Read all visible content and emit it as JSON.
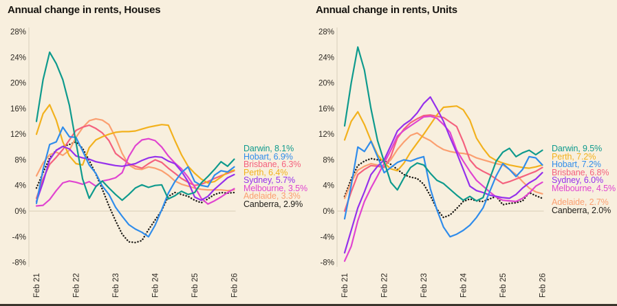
{
  "page": {
    "background": "#f8efde",
    "bottom_bar_color": "#3a352c",
    "zero_line_color": "#ddd3bf",
    "axis_line_color": "#d9cfba"
  },
  "series_colors": {
    "Darwin": "#0e9a8d",
    "Hobart": "#2f8ceb",
    "Brisbane": "#f4617e",
    "Perth": "#f2b11d",
    "Sydney": "#9530ec",
    "Melbourne": "#e044d0",
    "Adelaide": "#fb9f70",
    "Canberra": "#1d1b17"
  },
  "chart_data": [
    {
      "type": "line",
      "title": "Annual change in rents, Houses",
      "ylim": [
        -8,
        28
      ],
      "grid": "zero-line-only",
      "y_tick_values": [
        28,
        24,
        20,
        16,
        12,
        8,
        4,
        0,
        -4,
        -8
      ],
      "y_tick_labels": [
        "28%",
        "24%",
        "20%",
        "16%",
        "12%",
        "8%",
        "4%",
        "0%",
        "-4%",
        "-8%"
      ],
      "x_tick_labels": [
        "Feb 21",
        "Feb 22",
        "Feb 23",
        "Feb 24",
        "Feb 25",
        "Feb 26"
      ],
      "x_range_note": "monthly-interpolated values Feb 2021 to Feb 2026, evenly spaced",
      "series": [
        {
          "name": "Canberra",
          "color": "#1d1b17",
          "style": "dotted",
          "values": [
            3.6,
            6.0,
            8.3,
            9.5,
            10.1,
            10.4,
            10.8,
            9.8,
            7.9,
            5.8,
            3.4,
            0.8,
            -1.5,
            -3.6,
            -4.8,
            -4.9,
            -4.6,
            -2.9,
            -1.4,
            0.1,
            2.3,
            2.9,
            2.6,
            2.3,
            1.7,
            1.3,
            1.9,
            2.6,
            2.9,
            2.8,
            2.9
          ]
        },
        {
          "name": "Adelaide",
          "color": "#fb9f70",
          "style": "solid",
          "values": [
            5.5,
            7.5,
            8.8,
            9.2,
            8.7,
            9.5,
            11.5,
            13.0,
            14.1,
            14.4,
            14.2,
            13.5,
            11.5,
            9.0,
            7.2,
            6.6,
            6.5,
            6.9,
            6.7,
            6.3,
            5.6,
            4.7,
            4.2,
            3.9,
            3.6,
            3.4,
            3.3,
            3.3,
            3.3,
            3.2,
            3.3
          ]
        },
        {
          "name": "Brisbane",
          "color": "#f4617e",
          "style": "solid",
          "values": [
            2.0,
            5.0,
            7.3,
            8.4,
            9.6,
            11.1,
            12.6,
            13.1,
            13.4,
            12.9,
            12.2,
            11.0,
            9.0,
            8.2,
            7.4,
            7.0,
            6.7,
            7.4,
            8.0,
            7.6,
            6.7,
            5.9,
            5.1,
            4.5,
            4.0,
            4.2,
            4.6,
            5.1,
            5.5,
            5.9,
            6.3
          ]
        },
        {
          "name": "Perth",
          "color": "#f2b11d",
          "style": "solid",
          "values": [
            12.0,
            15.2,
            16.6,
            14.2,
            10.8,
            8.6,
            7.4,
            7.2,
            9.9,
            11.1,
            11.6,
            12.0,
            12.3,
            12.4,
            12.4,
            12.5,
            12.8,
            13.1,
            13.3,
            13.5,
            13.4,
            11.0,
            8.8,
            7.0,
            5.9,
            5.0,
            4.4,
            4.6,
            5.3,
            6.1,
            6.4
          ]
        },
        {
          "name": "Melbourne",
          "color": "#e044d0",
          "style": "solid",
          "values": [
            0.8,
            0.9,
            1.8,
            3.2,
            4.4,
            4.7,
            4.5,
            4.2,
            4.6,
            3.9,
            4.7,
            4.9,
            5.2,
            6.0,
            8.5,
            10.2,
            11.1,
            11.3,
            11.0,
            10.0,
            8.6,
            7.5,
            6.6,
            5.3,
            3.8,
            2.0,
            1.1,
            1.6,
            2.2,
            2.9,
            3.5
          ]
        },
        {
          "name": "Sydney",
          "color": "#9530ec",
          "style": "solid",
          "values": [
            1.5,
            4.5,
            8.0,
            9.5,
            10.1,
            9.7,
            8.6,
            8.3,
            8.1,
            7.7,
            7.5,
            7.3,
            7.1,
            7.0,
            7.2,
            7.4,
            7.9,
            8.3,
            8.5,
            8.4,
            7.8,
            7.4,
            6.2,
            4.6,
            2.2,
            1.7,
            2.3,
            3.4,
            4.3,
            5.2,
            5.7
          ]
        },
        {
          "name": "Hobart",
          "color": "#2f8ceb",
          "style": "solid",
          "values": [
            1.2,
            6.5,
            10.4,
            10.8,
            13.1,
            11.6,
            11.5,
            9.4,
            7.2,
            5.9,
            3.9,
            2.6,
            0.6,
            -0.8,
            -2.1,
            -2.8,
            -3.3,
            -4.0,
            -2.2,
            0.2,
            2.8,
            4.6,
            6.0,
            6.9,
            4.6,
            4.0,
            3.8,
            5.6,
            6.3,
            6.1,
            6.9
          ]
        },
        {
          "name": "Darwin",
          "color": "#0e9a8d",
          "style": "solid",
          "values": [
            14.0,
            20.5,
            24.8,
            23.0,
            20.5,
            16.5,
            10.7,
            5.0,
            2.0,
            3.8,
            4.7,
            3.6,
            2.6,
            1.7,
            2.6,
            3.6,
            4.1,
            3.7,
            4.0,
            4.1,
            1.9,
            2.4,
            3.1,
            2.6,
            2.9,
            4.4,
            5.4,
            6.5,
            7.7,
            7.0,
            8.1
          ]
        }
      ],
      "legend": [
        {
          "label": "Darwin, 8.1%",
          "color": "#0e9a8d"
        },
        {
          "label": "Hobart, 6.9%",
          "color": "#2f8ceb"
        },
        {
          "label": "Brisbane, 6.3%",
          "color": "#f4617e"
        },
        {
          "label": "Perth, 6.4%",
          "color": "#f2b11d"
        },
        {
          "label": "Sydney, 5.7%",
          "color": "#9530ec"
        },
        {
          "label": "Melbourne, 3.5%",
          "color": "#e044d0"
        },
        {
          "label": "Adelaide, 3.3%",
          "color": "#fb9f70"
        },
        {
          "label": "Canberra, 2.9%",
          "color": "#1d1b17"
        }
      ]
    },
    {
      "type": "line",
      "title": "Annual change in rents, Units",
      "ylim": [
        -8,
        28
      ],
      "grid": "zero-line-only",
      "y_tick_values": [
        28,
        24,
        20,
        16,
        12,
        8,
        4,
        0,
        -4,
        -8
      ],
      "y_tick_labels": [
        "28%",
        "24%",
        "20%",
        "16%",
        "12%",
        "8%",
        "4%",
        "0%",
        "-4%",
        "-8%"
      ],
      "x_tick_labels": [
        "Feb 21",
        "Feb 22",
        "Feb 23",
        "Feb 24",
        "Feb 25",
        "Feb 26"
      ],
      "x_range_note": "monthly-interpolated values Feb 2021 to Feb 2026, evenly spaced",
      "series": [
        {
          "name": "Canberra",
          "color": "#1d1b17",
          "style": "dotted",
          "values": [
            2.3,
            5.0,
            7.1,
            7.8,
            8.2,
            8.0,
            7.9,
            7.3,
            6.5,
            5.7,
            5.3,
            5.1,
            4.2,
            2.4,
            0.3,
            -1.0,
            -0.6,
            0.4,
            1.5,
            1.9,
            1.6,
            1.5,
            1.9,
            2.3,
            1.0,
            1.2,
            1.3,
            1.6,
            2.9,
            2.4,
            2.0
          ]
        },
        {
          "name": "Adelaide",
          "color": "#fb9f70",
          "style": "solid",
          "values": [
            2.0,
            4.5,
            6.4,
            7.0,
            7.4,
            7.2,
            7.0,
            8.0,
            9.6,
            10.8,
            11.8,
            12.2,
            11.5,
            11.0,
            10.2,
            9.6,
            9.3,
            9.1,
            9.0,
            8.8,
            8.3,
            8.0,
            7.7,
            7.4,
            7.2,
            6.5,
            5.7,
            4.6,
            3.6,
            3.0,
            2.7
          ]
        },
        {
          "name": "Brisbane",
          "color": "#f4617e",
          "style": "solid",
          "values": [
            0.0,
            3.0,
            5.7,
            6.5,
            7.1,
            7.0,
            6.8,
            8.5,
            11.4,
            12.8,
            13.8,
            14.4,
            14.9,
            15.0,
            14.8,
            14.6,
            13.9,
            13.2,
            10.8,
            8.0,
            6.8,
            6.2,
            5.7,
            5.0,
            4.3,
            4.6,
            5.0,
            5.4,
            5.8,
            6.2,
            6.8
          ]
        },
        {
          "name": "Perth",
          "color": "#f2b11d",
          "style": "solid",
          "values": [
            11.1,
            14.0,
            15.5,
            13.5,
            11.0,
            8.8,
            7.5,
            6.6,
            6.3,
            7.5,
            9.2,
            10.6,
            12.0,
            13.5,
            15.0,
            16.2,
            16.3,
            16.4,
            15.8,
            14.2,
            11.4,
            9.8,
            8.5,
            7.9,
            7.5,
            7.2,
            7.0,
            6.8,
            6.7,
            6.9,
            7.2
          ]
        },
        {
          "name": "Melbourne",
          "color": "#e044d0",
          "style": "solid",
          "values": [
            -7.8,
            -5.5,
            -1.5,
            1.5,
            3.6,
            5.5,
            7.5,
            9.5,
            11.7,
            12.6,
            13.3,
            14.0,
            14.7,
            14.8,
            14.5,
            13.5,
            12.3,
            9.5,
            7.8,
            6.2,
            4.8,
            3.9,
            3.0,
            2.2,
            1.7,
            1.6,
            1.5,
            2.0,
            2.8,
            3.9,
            4.5
          ]
        },
        {
          "name": "Sydney",
          "color": "#9530ec",
          "style": "solid",
          "values": [
            -6.5,
            -3.0,
            0.5,
            3.0,
            5.7,
            7.0,
            8.0,
            10.2,
            12.5,
            13.5,
            14.2,
            15.3,
            16.8,
            17.8,
            16.0,
            14.0,
            11.5,
            9.1,
            6.5,
            3.9,
            3.2,
            2.9,
            2.5,
            2.3,
            2.1,
            2.0,
            2.6,
            3.6,
            4.4,
            5.0,
            6.0
          ]
        },
        {
          "name": "Hobart",
          "color": "#2f8ceb",
          "style": "solid",
          "values": [
            -1.2,
            4.0,
            10.0,
            9.3,
            10.9,
            8.5,
            6.0,
            6.8,
            7.6,
            8.0,
            7.8,
            8.2,
            8.5,
            3.5,
            0.2,
            -2.5,
            -4.0,
            -3.6,
            -3.0,
            -2.2,
            -1.0,
            0.5,
            3.0,
            5.5,
            7.4,
            6.5,
            5.4,
            6.5,
            8.5,
            8.3,
            7.2
          ]
        },
        {
          "name": "Darwin",
          "color": "#0e9a8d",
          "style": "solid",
          "values": [
            13.3,
            20.0,
            25.6,
            22.0,
            16.0,
            11.0,
            7.7,
            4.5,
            3.3,
            5.2,
            6.8,
            7.5,
            7.2,
            5.9,
            4.8,
            4.3,
            3.4,
            2.5,
            1.7,
            2.3,
            1.6,
            2.1,
            5.0,
            7.8,
            9.2,
            9.8,
            8.5,
            9.1,
            9.5,
            8.8,
            9.5
          ]
        }
      ],
      "legend": [
        {
          "label": "Darwin, 9.5%",
          "color": "#0e9a8d"
        },
        {
          "label": "Perth, 7.2%",
          "color": "#f2b11d"
        },
        {
          "label": "Hobart, 7.2%",
          "color": "#2f8ceb"
        },
        {
          "label": "Brisbane, 6.8%",
          "color": "#f4617e"
        },
        {
          "label": "Sydney, 6.0%",
          "color": "#9530ec"
        },
        {
          "label": "Melbourne, 4.5%",
          "color": "#e044d0"
        },
        {
          "label": "Adelaide, 2.7%",
          "color": "#fb9f70",
          "gap_before": true
        },
        {
          "label": "Canberra, 2.0%",
          "color": "#1d1b17"
        }
      ]
    }
  ]
}
